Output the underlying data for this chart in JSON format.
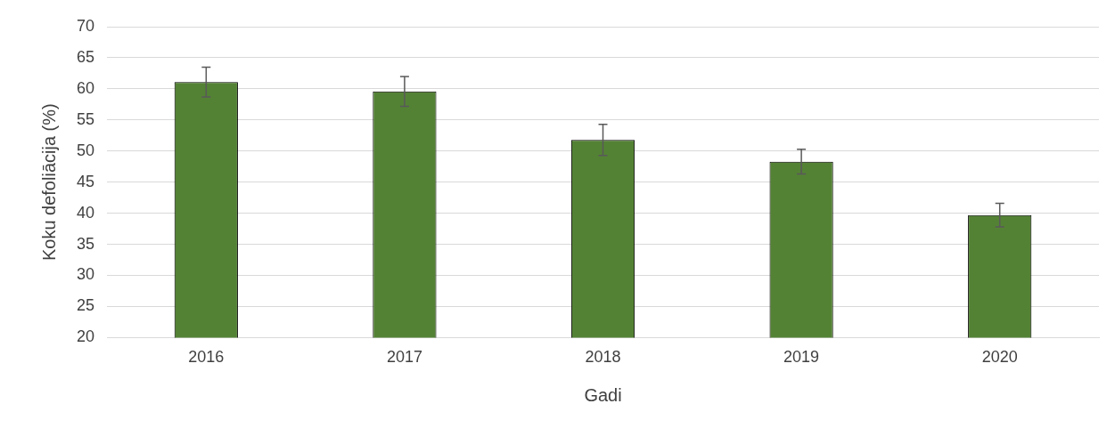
{
  "chart_data": {
    "type": "bar",
    "xlabel": "Gadi",
    "ylabel": "Koku defoliācija (%)",
    "categories": [
      "2016",
      "2017",
      "2018",
      "2019",
      "2020"
    ],
    "values": [
      61.1,
      59.6,
      51.8,
      48.3,
      39.7
    ],
    "errors": [
      2.4,
      2.4,
      2.5,
      2,
      1.9
    ],
    "color": "#548235",
    "ylim": [
      20,
      70
    ],
    "yticks": [
      20,
      25,
      30,
      35,
      40,
      45,
      50,
      55,
      60,
      65,
      70
    ],
    "grid": "y",
    "legend": false
  }
}
